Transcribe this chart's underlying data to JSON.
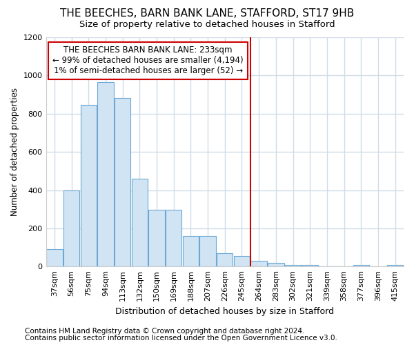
{
  "title1": "THE BEECHES, BARN BANK LANE, STAFFORD, ST17 9HB",
  "title2": "Size of property relative to detached houses in Stafford",
  "xlabel": "Distribution of detached houses by size in Stafford",
  "ylabel": "Number of detached properties",
  "footnote1": "Contains HM Land Registry data © Crown copyright and database right 2024.",
  "footnote2": "Contains public sector information licensed under the Open Government Licence v3.0.",
  "categories": [
    "37sqm",
    "56sqm",
    "75sqm",
    "94sqm",
    "113sqm",
    "132sqm",
    "150sqm",
    "169sqm",
    "188sqm",
    "207sqm",
    "226sqm",
    "245sqm",
    "264sqm",
    "283sqm",
    "302sqm",
    "321sqm",
    "339sqm",
    "358sqm",
    "377sqm",
    "396sqm",
    "415sqm"
  ],
  "values": [
    90,
    398,
    845,
    965,
    882,
    460,
    297,
    297,
    160,
    160,
    70,
    55,
    30,
    20,
    10,
    10,
    0,
    0,
    10,
    0,
    8
  ],
  "bar_color": "#d0e4f4",
  "bar_edge_color": "#6ca8d4",
  "vline_x": 11.5,
  "vline_color": "#cc0000",
  "annotation_text": "THE BEECHES BARN BANK LANE: 233sqm\n← 99% of detached houses are smaller (4,194)\n1% of semi-detached houses are larger (52) →",
  "annotation_box_color": "#ffffff",
  "annotation_box_edge": "#cc0000",
  "ylim": [
    0,
    1200
  ],
  "yticks": [
    0,
    200,
    400,
    600,
    800,
    1000,
    1200
  ],
  "bg_color": "#ffffff",
  "grid_color": "#d0dce8",
  "title1_fontsize": 11,
  "title2_fontsize": 9.5,
  "xlabel_fontsize": 9,
  "ylabel_fontsize": 8.5,
  "tick_fontsize": 8,
  "annot_fontsize": 8.5,
  "footnote_fontsize": 7.5
}
